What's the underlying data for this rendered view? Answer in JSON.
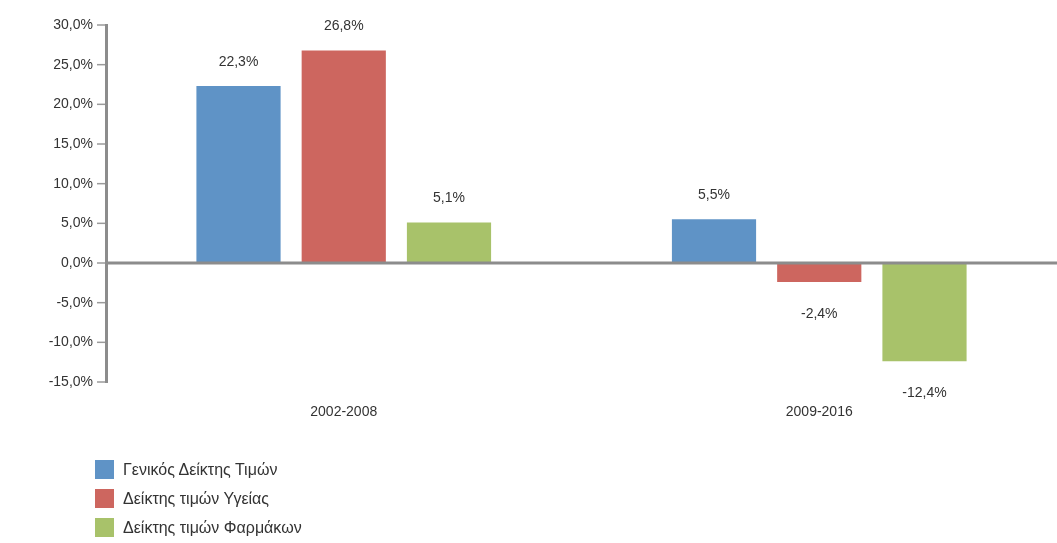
{
  "chart_data": {
    "type": "bar",
    "categories": [
      "2002-2008",
      "2009-2016"
    ],
    "series": [
      {
        "name": "Γενικός Δείκτης Τιμών",
        "color": "#5f93c6",
        "values": [
          22.3,
          5.5
        ],
        "value_labels": [
          "22,3%",
          "5,5%"
        ]
      },
      {
        "name": "Δείκτης τιμών Υγείας",
        "color": "#cd665f",
        "values": [
          26.8,
          -2.4
        ],
        "value_labels": [
          "26,8%",
          "-2,4%"
        ]
      },
      {
        "name": "Δείκτης τιμών Φαρμάκων",
        "color": "#a8c26a",
        "values": [
          5.1,
          -12.4
        ],
        "value_labels": [
          "5,1%",
          "-12,4%"
        ]
      }
    ],
    "ylim": [
      -15,
      30
    ],
    "yticks": [
      {
        "value": -15,
        "label": "-15,0%"
      },
      {
        "value": -10,
        "label": "-10,0%"
      },
      {
        "value": -5,
        "label": "-5,0%"
      },
      {
        "value": 0,
        "label": "0,0%"
      },
      {
        "value": 5,
        "label": "5,0%"
      },
      {
        "value": 10,
        "label": "10,0%"
      },
      {
        "value": 15,
        "label": "15,0%"
      },
      {
        "value": 20,
        "label": "20,0%"
      },
      {
        "value": 25,
        "label": "25,0%"
      },
      {
        "value": 30,
        "label": "30,0%"
      }
    ],
    "ref_lines": [
      {
        "axis": "y",
        "value": 0,
        "color": "#8c8c8c"
      }
    ],
    "grid": false,
    "legend": "bottom left"
  }
}
